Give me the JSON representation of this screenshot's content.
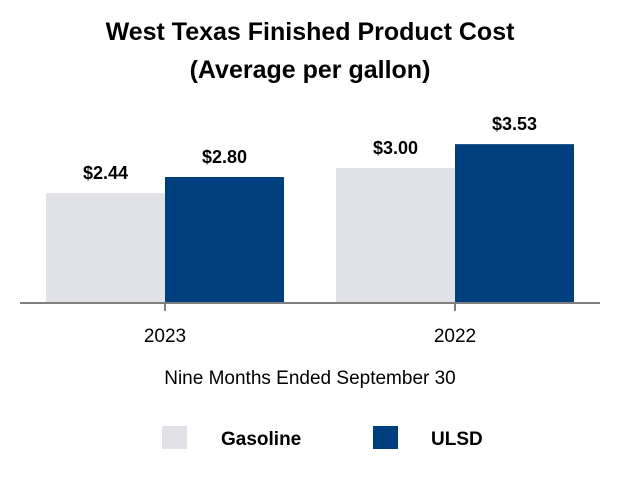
{
  "chart_data": {
    "type": "bar",
    "title": "West Texas Finished Product Cost",
    "subtitle": "(Average per gallon)",
    "xlabel": "Nine Months Ended September 30",
    "ylabel": "",
    "categories": [
      "2023",
      "2022"
    ],
    "series": [
      {
        "name": "Gasoline",
        "values": [
          2.44,
          3.0
        ],
        "labels": [
          "$2.44",
          "$3.00"
        ],
        "color": "#e1e2e7"
      },
      {
        "name": "ULSD",
        "values": [
          2.8,
          3.53
        ],
        "labels": [
          "$2.80",
          "$3.53"
        ],
        "color": "#003f7d"
      }
    ],
    "ylim": [
      0,
      5.5
    ],
    "grid": false,
    "legend_position": "bottom"
  }
}
